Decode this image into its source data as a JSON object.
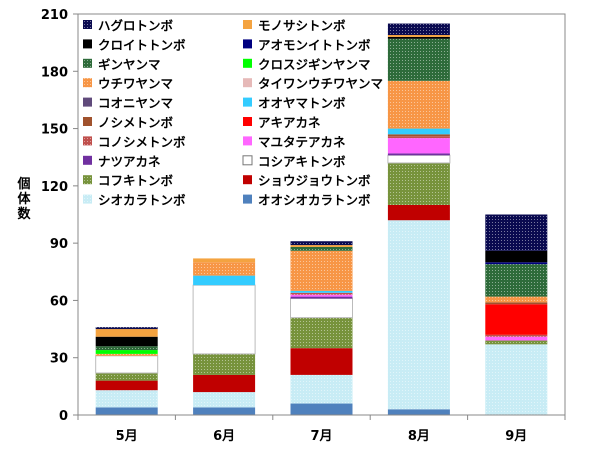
{
  "chart_data": {
    "type": "bar",
    "stacked": true,
    "ylabel": "個体数",
    "ylim": [
      0,
      210
    ],
    "yticks": [
      0,
      30,
      60,
      90,
      120,
      150,
      180,
      210
    ],
    "categories": [
      "5月",
      "6月",
      "7月",
      "8月",
      "9月"
    ],
    "legend_placement": "top (inside plot area, two columns)",
    "grid": false,
    "series": [
      {
        "name": "オオシオカラトンボ",
        "color": "#4f81bd",
        "pattern": "solid",
        "values": [
          4,
          4,
          6,
          3,
          0
        ]
      },
      {
        "name": "シオカラトンボ",
        "color": "#c8ecf5",
        "pattern": "dotted",
        "values": [
          9,
          8,
          15,
          99,
          37
        ]
      },
      {
        "name": "ショウジョウトンボ",
        "color": "#c00000",
        "pattern": "solid",
        "values": [
          5,
          9,
          14,
          8,
          0
        ]
      },
      {
        "name": "コフキトンボ",
        "color": "#77933c",
        "pattern": "dotted",
        "values": [
          4,
          11,
          16,
          22,
          2
        ]
      },
      {
        "name": "コシアキトンボ",
        "color": "#ffffff",
        "pattern": "outline",
        "values": [
          9,
          36,
          10,
          4,
          0
        ]
      },
      {
        "name": "ナツアカネ",
        "color": "#7030a0",
        "pattern": "solid",
        "values": [
          0,
          0,
          1,
          1,
          0
        ]
      },
      {
        "name": "マユタテアカネ",
        "color": "#ff66ff",
        "pattern": "solid",
        "values": [
          0,
          0,
          1,
          8,
          2
        ]
      },
      {
        "name": "コノシメトンボ",
        "color": "#c0504d",
        "pattern": "dotted",
        "values": [
          0,
          0,
          1,
          1,
          1
        ]
      },
      {
        "name": "アキアカネ",
        "color": "#ff0000",
        "pattern": "solid",
        "values": [
          0,
          0,
          0,
          0,
          16
        ]
      },
      {
        "name": "ノシメトンボ",
        "color": "#a0522d",
        "pattern": "solid",
        "values": [
          0,
          0,
          0,
          1,
          1
        ]
      },
      {
        "name": "オオヤマトンボ",
        "color": "#33ccff",
        "pattern": "solid",
        "values": [
          0,
          5,
          1,
          3,
          0
        ]
      },
      {
        "name": "コオニヤンマ",
        "color": "#604a7b",
        "pattern": "solid",
        "values": [
          0,
          0,
          0,
          0,
          0
        ]
      },
      {
        "name": "タイワンウチワヤンマ",
        "color": "#e6b9b8",
        "pattern": "solid",
        "values": [
          0,
          0,
          0,
          0,
          0
        ]
      },
      {
        "name": "ウチワヤンマ",
        "color": "#f79646",
        "pattern": "dotted",
        "values": [
          1,
          7,
          21,
          25,
          3
        ]
      },
      {
        "name": "クロスジギンヤンマ",
        "color": "#00ff00",
        "pattern": "solid",
        "values": [
          2,
          0,
          0,
          0,
          0
        ]
      },
      {
        "name": "ギンヤンマ",
        "color": "#2e6b3a",
        "pattern": "dotted",
        "values": [
          2,
          0,
          2,
          22,
          17
        ]
      },
      {
        "name": "アオモンイトトンボ",
        "color": "#000080",
        "pattern": "solid",
        "values": [
          0,
          0,
          0,
          0,
          1
        ]
      },
      {
        "name": "クロイトトンボ",
        "color": "#000000",
        "pattern": "solid",
        "values": [
          5,
          0,
          0,
          1,
          6
        ]
      },
      {
        "name": "モノサシトンボ",
        "color": "#f4a340",
        "pattern": "solid",
        "values": [
          4,
          2,
          1,
          1,
          0
        ]
      },
      {
        "name": "ハグロトンボ",
        "color": "#0a0a50",
        "pattern": "dotted",
        "values": [
          1,
          0,
          2,
          6,
          19
        ]
      }
    ]
  }
}
